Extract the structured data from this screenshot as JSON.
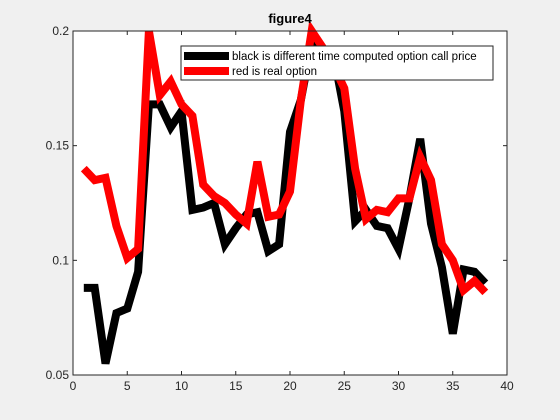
{
  "chart_data": {
    "type": "line",
    "title": "figure4",
    "xlabel": "",
    "ylabel": "",
    "xlim": [
      0,
      40
    ],
    "ylim": [
      0.05,
      0.2
    ],
    "xticks": [
      "0",
      "5",
      "10",
      "15",
      "20",
      "25",
      "30",
      "35",
      "40"
    ],
    "yticks": [
      "0.05",
      "0.1",
      "0.15",
      "0.2"
    ],
    "grid": false,
    "legend_placement": "top-right",
    "series": [
      {
        "name": "black is different time computed option call price",
        "color": "#000000",
        "x": [
          1,
          2,
          3,
          4,
          5,
          6,
          7,
          8,
          9,
          10,
          11,
          12,
          13,
          14,
          15,
          16,
          17,
          18,
          19,
          20,
          21,
          22,
          23,
          24,
          25,
          26,
          27,
          28,
          29,
          30,
          31,
          32,
          33,
          34,
          35,
          36,
          37,
          38
        ],
        "values": [
          0.088,
          0.088,
          0.055,
          0.077,
          0.079,
          0.095,
          0.168,
          0.168,
          0.158,
          0.165,
          0.122,
          0.123,
          0.125,
          0.107,
          0.114,
          0.12,
          0.121,
          0.104,
          0.107,
          0.156,
          0.17,
          0.195,
          0.19,
          0.19,
          0.165,
          0.117,
          0.122,
          0.115,
          0.114,
          0.105,
          0.127,
          0.153,
          0.116,
          0.097,
          0.068,
          0.096,
          0.095,
          0.09
        ]
      },
      {
        "name": "red is real option",
        "color": "#ff0000",
        "x": [
          1,
          2,
          3,
          4,
          5,
          6,
          7,
          8,
          9,
          10,
          11,
          12,
          13,
          14,
          15,
          16,
          17,
          18,
          19,
          20,
          21,
          22,
          23,
          24,
          25,
          26,
          27,
          28,
          29,
          30,
          31,
          32,
          33,
          34,
          35,
          36,
          37,
          38
        ],
        "values": [
          0.14,
          0.135,
          0.136,
          0.115,
          0.101,
          0.105,
          0.2,
          0.172,
          0.178,
          0.168,
          0.163,
          0.133,
          0.128,
          0.125,
          0.12,
          0.116,
          0.143,
          0.119,
          0.12,
          0.13,
          0.17,
          0.2,
          0.193,
          0.185,
          0.175,
          0.14,
          0.118,
          0.122,
          0.121,
          0.127,
          0.127,
          0.145,
          0.135,
          0.107,
          0.1,
          0.087,
          0.091,
          0.086
        ]
      }
    ]
  }
}
